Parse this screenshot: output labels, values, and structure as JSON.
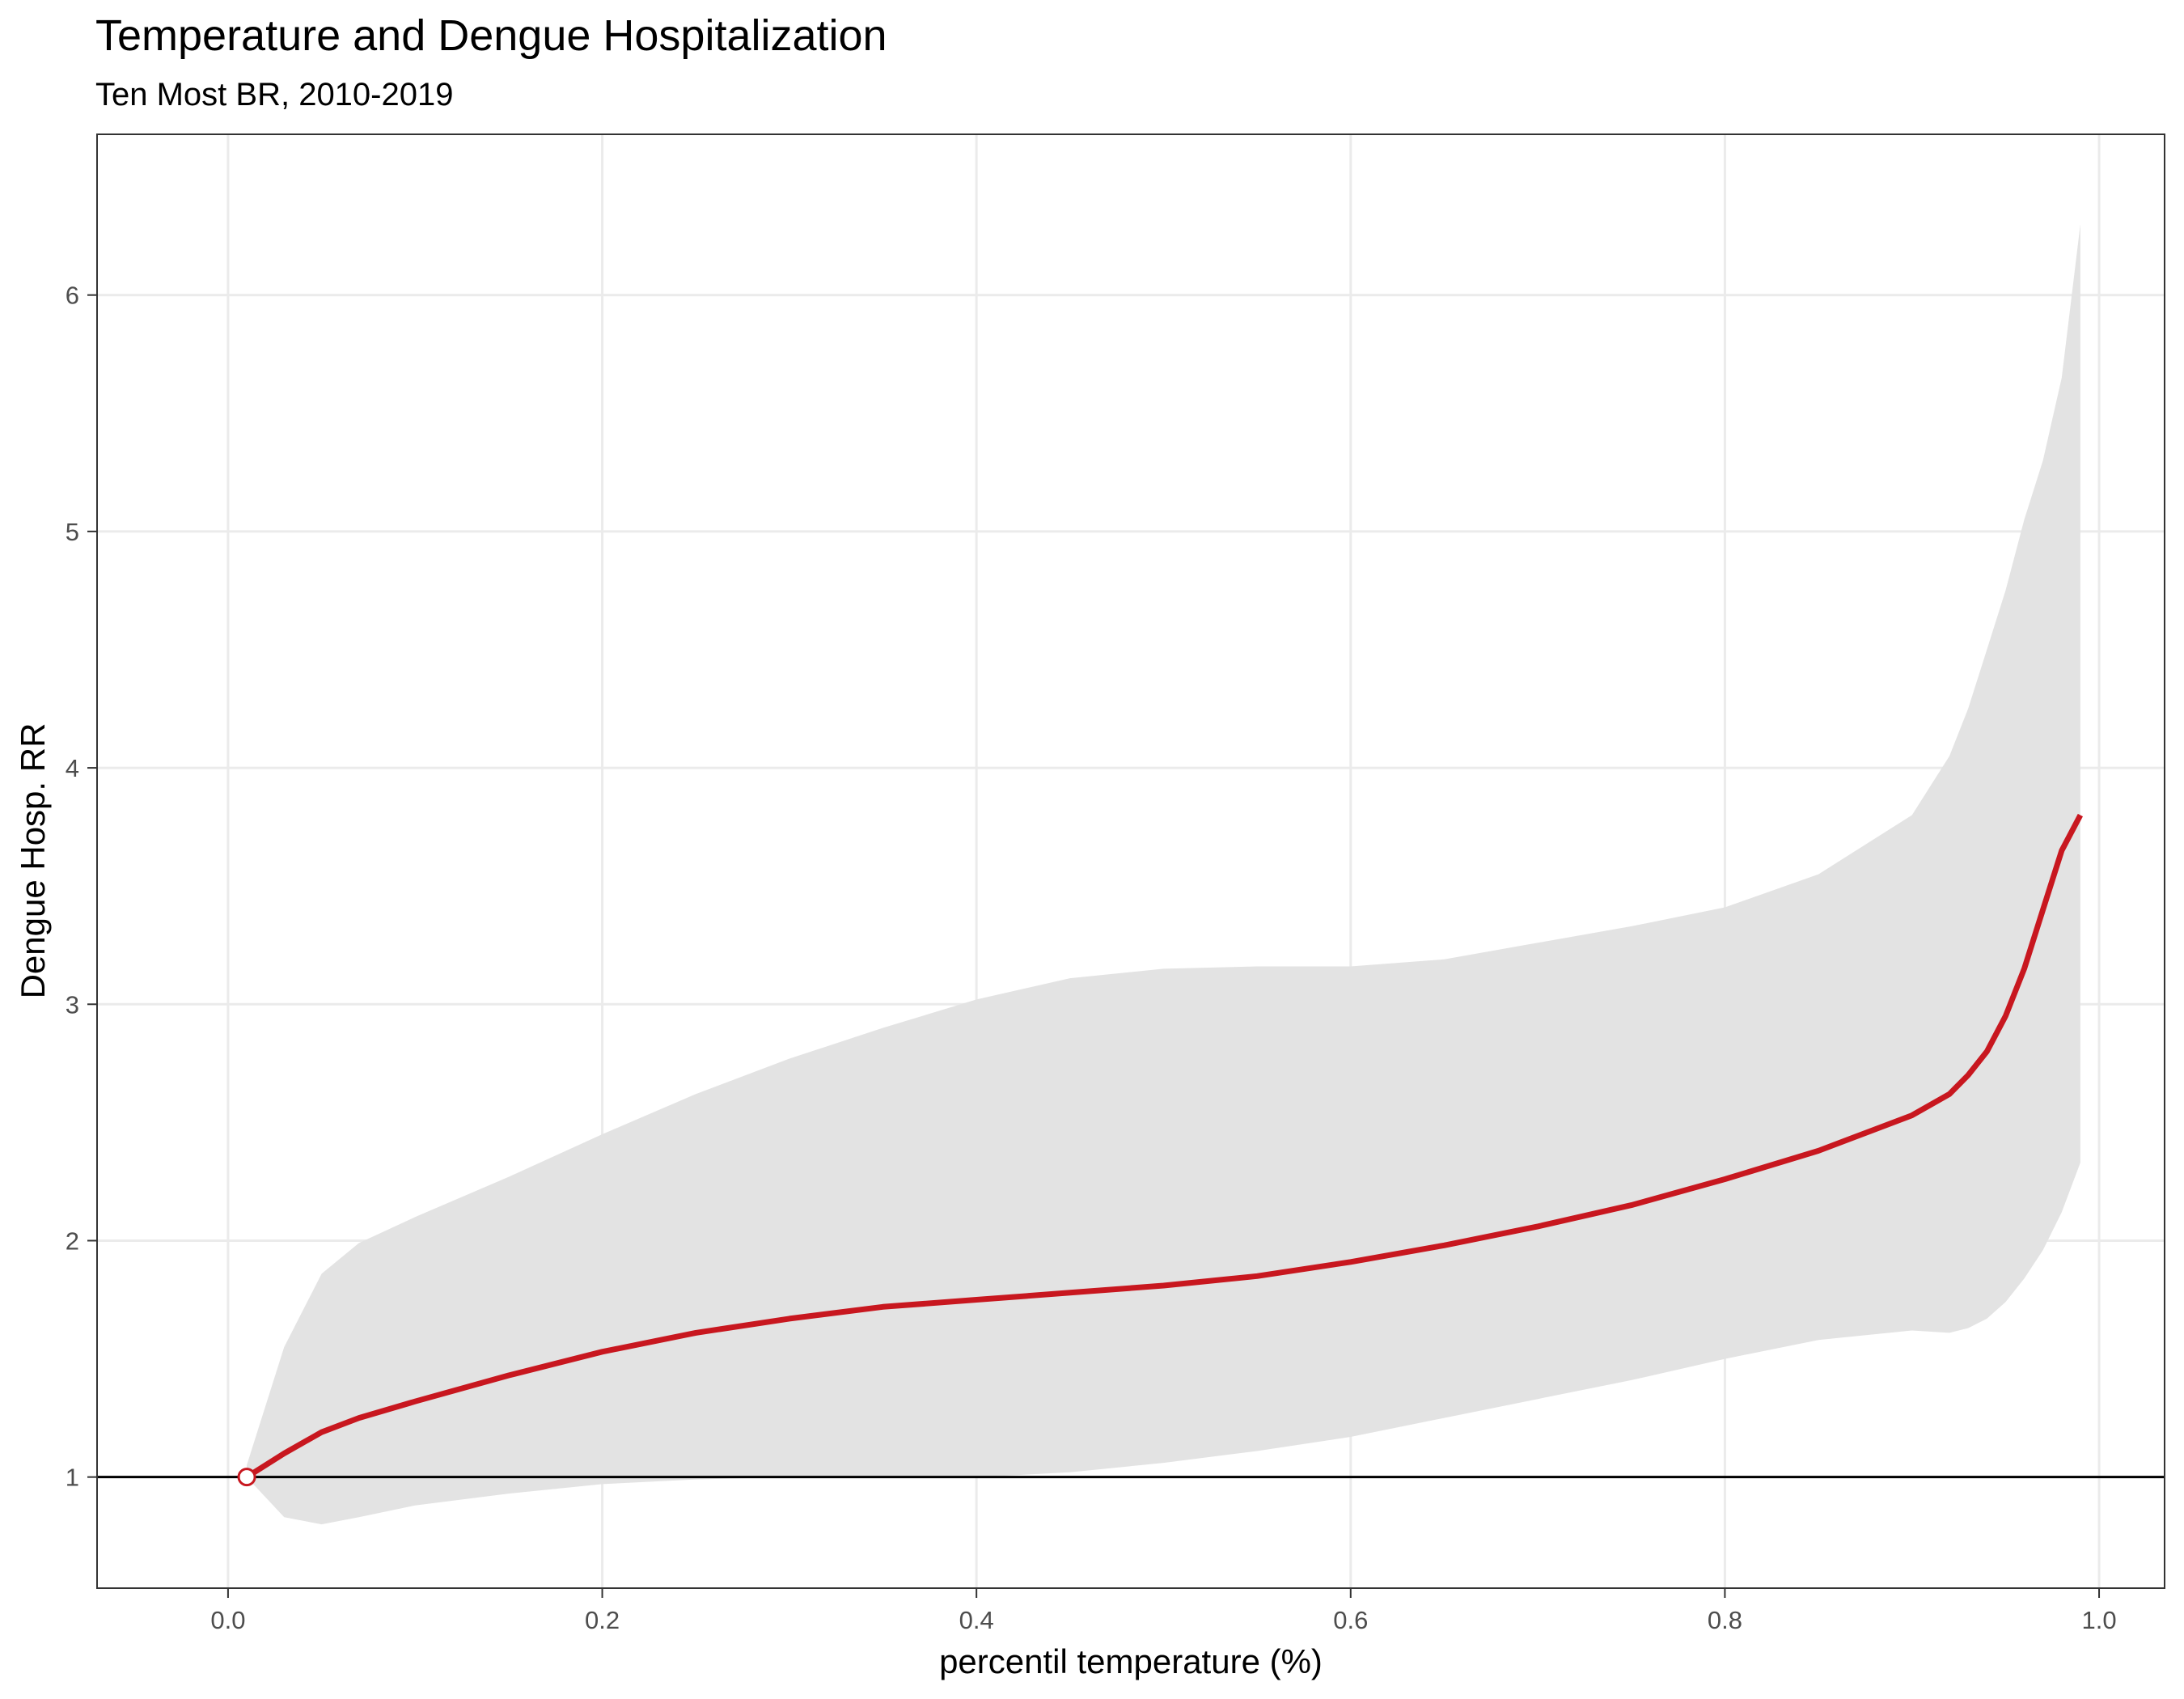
{
  "chart_data": {
    "type": "line",
    "title": "Temperature and Dengue Hospitalization",
    "subtitle": "Ten Most BR, 2010-2019",
    "xlabel": "percentil temperature (%)",
    "ylabel": "Dengue Hosp. RR",
    "xlim": [
      -0.07,
      1.035
    ],
    "ylim": [
      0.53,
      6.68
    ],
    "xticks": [
      0,
      0.2,
      0.4,
      0.6,
      0.8,
      1
    ],
    "xtick_labels": [
      "0.0",
      "0.2",
      "0.4",
      "0.6",
      "0.8",
      "1.0"
    ],
    "yticks": [
      1,
      2,
      3,
      4,
      5,
      6
    ],
    "ytick_labels": [
      "1",
      "2",
      "3",
      "4",
      "5",
      "6"
    ],
    "grid": true,
    "reference_line_y": 1,
    "reference_point": {
      "x": 0.01,
      "y": 1.0
    },
    "series": [
      {
        "color": "#c8171f",
        "x": [
          0.01,
          0.03,
          0.05,
          0.07,
          0.1,
          0.15,
          0.2,
          0.25,
          0.3,
          0.35,
          0.4,
          0.45,
          0.5,
          0.55,
          0.6,
          0.65,
          0.7,
          0.75,
          0.8,
          0.85,
          0.9,
          0.92,
          0.93,
          0.94,
          0.95,
          0.96,
          0.97,
          0.98,
          0.99
        ],
        "y": [
          1.0,
          1.1,
          1.19,
          1.25,
          1.32,
          1.43,
          1.53,
          1.61,
          1.67,
          1.72,
          1.75,
          1.78,
          1.81,
          1.85,
          1.91,
          1.98,
          2.06,
          2.15,
          2.26,
          2.38,
          2.53,
          2.62,
          2.7,
          2.8,
          2.95,
          3.15,
          3.4,
          3.65,
          3.8
        ]
      }
    ],
    "confidence_band": {
      "color": "#e3e3e3",
      "x": [
        0.01,
        0.03,
        0.05,
        0.07,
        0.1,
        0.15,
        0.2,
        0.25,
        0.3,
        0.35,
        0.4,
        0.45,
        0.5,
        0.55,
        0.6,
        0.65,
        0.7,
        0.75,
        0.8,
        0.85,
        0.9,
        0.92,
        0.93,
        0.94,
        0.95,
        0.96,
        0.97,
        0.98,
        0.99
      ],
      "upper": [
        1.05,
        1.55,
        1.86,
        1.99,
        2.1,
        2.27,
        2.45,
        2.62,
        2.77,
        2.9,
        3.02,
        3.11,
        3.15,
        3.16,
        3.16,
        3.19,
        3.26,
        3.33,
        3.41,
        3.55,
        3.8,
        4.05,
        4.25,
        4.5,
        4.75,
        5.05,
        5.3,
        5.65,
        6.3
      ],
      "lower": [
        1.0,
        0.83,
        0.8,
        0.83,
        0.88,
        0.93,
        0.97,
        0.99,
        1.0,
        1.0,
        1.0,
        1.02,
        1.06,
        1.11,
        1.17,
        1.25,
        1.33,
        1.41,
        1.5,
        1.58,
        1.62,
        1.61,
        1.63,
        1.67,
        1.74,
        1.84,
        1.96,
        2.12,
        2.33
      ]
    }
  }
}
